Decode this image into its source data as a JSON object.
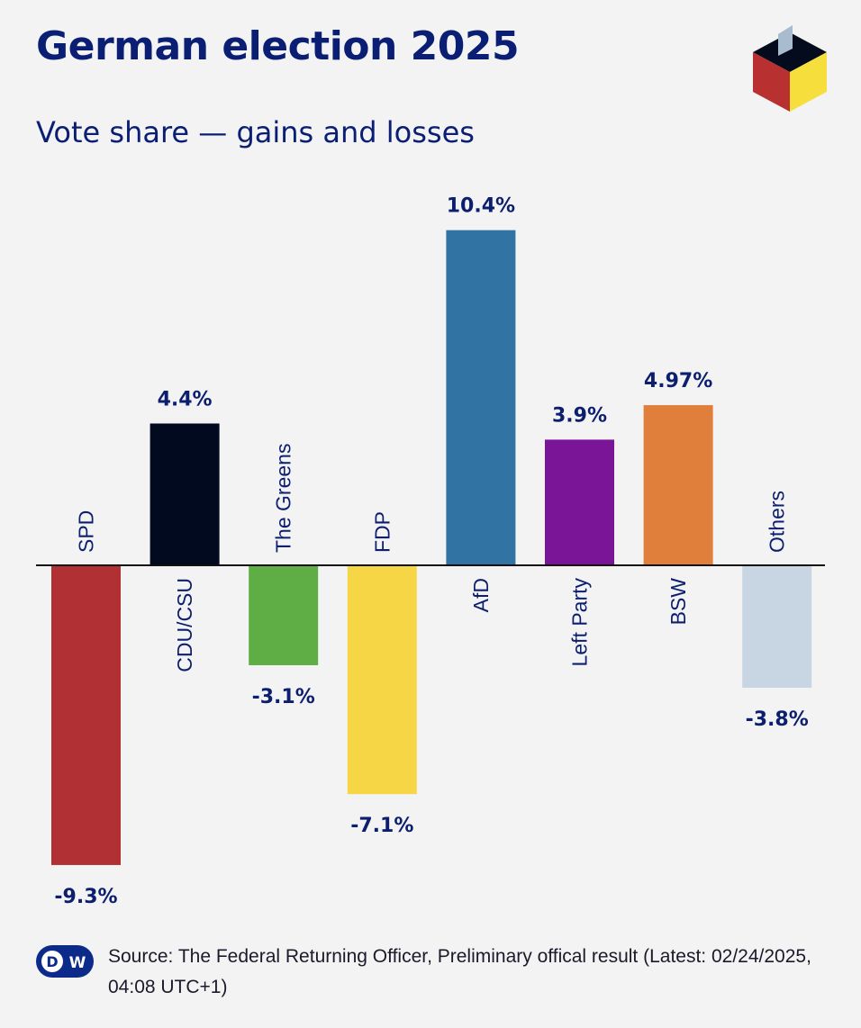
{
  "header": {
    "title": "German election 2025",
    "subtitle": "Vote share — gains and losses"
  },
  "chart_data": {
    "type": "bar",
    "categories": [
      "SPD",
      "CDU/CSU",
      "The Greens",
      "FDP",
      "AfD",
      "Left Party",
      "BSW",
      "Others"
    ],
    "values": [
      -9.3,
      4.4,
      -3.1,
      -7.1,
      10.4,
      3.9,
      4.97,
      -3.8
    ],
    "data_labels": [
      "-9.3%",
      "4.4%",
      "-3.1%",
      "-7.1%",
      "10.4%",
      "3.9%",
      "4.97%",
      "-3.8%"
    ],
    "colors": [
      "#b03034",
      "#020a1f",
      "#5fae45",
      "#f6d645",
      "#3174a4",
      "#7a1597",
      "#e07e3c",
      "#c8d6e4"
    ],
    "unit": "percentage points",
    "grid": false,
    "legend": "none"
  },
  "footer": {
    "source": "Source: The Federal Returning Officer, Preliminary offical result (Latest: 02/24/2025, 04:08 UTC+1)",
    "logo_text": "DW"
  }
}
